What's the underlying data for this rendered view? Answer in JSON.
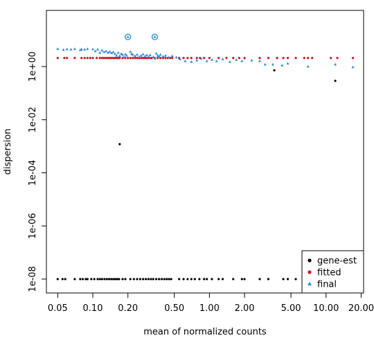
{
  "chart_data": {
    "type": "scatter",
    "title": "",
    "xlabel": "mean of normalized counts",
    "ylabel": "dispersion",
    "x_scale": "log",
    "y_scale": "log",
    "xlim": [
      0.04,
      21
    ],
    "ylim": [
      3e-09,
      130
    ],
    "x_ticks": [
      {
        "value": 0.05,
        "label": "0.05"
      },
      {
        "value": 0.1,
        "label": "0.10"
      },
      {
        "value": 0.2,
        "label": "0.20"
      },
      {
        "value": 0.5,
        "label": "0.50"
      },
      {
        "value": 1.0,
        "label": "1.00"
      },
      {
        "value": 2.0,
        "label": "2.00"
      },
      {
        "value": 5.0,
        "label": "5.00"
      },
      {
        "value": 10.0,
        "label": "10.00"
      },
      {
        "value": 20.0,
        "label": "20.00"
      }
    ],
    "y_ticks": [
      {
        "value": 1e-08,
        "label": "1e-08"
      },
      {
        "value": 1e-06,
        "label": "1e-06"
      },
      {
        "value": 0.0001,
        "label": "1e-04"
      },
      {
        "value": 0.01,
        "label": "1e-02"
      },
      {
        "value": 1,
        "label": "1e+00"
      }
    ],
    "legend_position": "bottom-right",
    "grid": false,
    "series": [
      {
        "name": "gene-est",
        "color": "#000000",
        "marker": "dot",
        "points": [
          [
            0.05,
            1e-08
          ],
          [
            0.055,
            1e-08
          ],
          [
            0.058,
            1e-08
          ],
          [
            0.07,
            1e-08
          ],
          [
            0.078,
            1e-08
          ],
          [
            0.082,
            1e-08
          ],
          [
            0.087,
            1e-08
          ],
          [
            0.09,
            1e-08
          ],
          [
            0.097,
            1e-08
          ],
          [
            0.103,
            1e-08
          ],
          [
            0.11,
            1e-08
          ],
          [
            0.115,
            1e-08
          ],
          [
            0.12,
            1e-08
          ],
          [
            0.126,
            1e-08
          ],
          [
            0.132,
            1e-08
          ],
          [
            0.138,
            1e-08
          ],
          [
            0.144,
            1e-08
          ],
          [
            0.15,
            1e-08
          ],
          [
            0.156,
            1e-08
          ],
          [
            0.162,
            1e-08
          ],
          [
            0.168,
            1e-08
          ],
          [
            0.18,
            1e-08
          ],
          [
            0.19,
            1e-08
          ],
          [
            0.21,
            1e-08
          ],
          [
            0.225,
            1e-08
          ],
          [
            0.24,
            1e-08
          ],
          [
            0.255,
            1e-08
          ],
          [
            0.27,
            1e-08
          ],
          [
            0.285,
            1e-08
          ],
          [
            0.3,
            1e-08
          ],
          [
            0.315,
            1e-08
          ],
          [
            0.33,
            1e-08
          ],
          [
            0.35,
            1e-08
          ],
          [
            0.37,
            1e-08
          ],
          [
            0.39,
            1e-08
          ],
          [
            0.41,
            1e-08
          ],
          [
            0.43,
            1e-08
          ],
          [
            0.45,
            1e-08
          ],
          [
            0.47,
            1e-08
          ],
          [
            0.55,
            1e-08
          ],
          [
            0.6,
            1e-08
          ],
          [
            0.65,
            1e-08
          ],
          [
            0.7,
            1e-08
          ],
          [
            0.75,
            1e-08
          ],
          [
            0.82,
            1e-08
          ],
          [
            0.9,
            1e-08
          ],
          [
            0.95,
            1e-08
          ],
          [
            1.05,
            1e-08
          ],
          [
            1.2,
            1e-08
          ],
          [
            1.3,
            1e-08
          ],
          [
            1.6,
            1e-08
          ],
          [
            1.9,
            1e-08
          ],
          [
            2.0,
            1e-08
          ],
          [
            2.7,
            1e-08
          ],
          [
            3.2,
            1e-08
          ],
          [
            4.3,
            1e-08
          ],
          [
            4.7,
            1e-08
          ],
          [
            5.5,
            1e-08
          ],
          [
            7.5,
            1e-08
          ],
          [
            0.17,
            0.0012
          ],
          [
            3.6,
            0.72
          ],
          [
            12.0,
            0.29
          ]
        ]
      },
      {
        "name": "fitted",
        "color": "#d0101f",
        "marker": "dot",
        "points": [
          [
            0.05,
            2.1
          ],
          [
            0.057,
            2.1
          ],
          [
            0.06,
            2.1
          ],
          [
            0.07,
            2.1
          ],
          [
            0.08,
            2.1
          ],
          [
            0.085,
            2.1
          ],
          [
            0.09,
            2.1
          ],
          [
            0.095,
            2.1
          ],
          [
            0.1,
            2.1
          ],
          [
            0.108,
            2.1
          ],
          [
            0.115,
            2.1
          ],
          [
            0.12,
            2.1
          ],
          [
            0.125,
            2.1
          ],
          [
            0.13,
            2.1
          ],
          [
            0.135,
            2.1
          ],
          [
            0.14,
            2.1
          ],
          [
            0.145,
            2.1
          ],
          [
            0.15,
            2.1
          ],
          [
            0.155,
            2.1
          ],
          [
            0.16,
            2.1
          ],
          [
            0.165,
            2.1
          ],
          [
            0.17,
            2.1
          ],
          [
            0.18,
            2.1
          ],
          [
            0.19,
            2.1
          ],
          [
            0.2,
            2.1
          ],
          [
            0.21,
            2.1
          ],
          [
            0.22,
            2.1
          ],
          [
            0.23,
            2.1
          ],
          [
            0.24,
            2.1
          ],
          [
            0.25,
            2.1
          ],
          [
            0.26,
            2.1
          ],
          [
            0.27,
            2.1
          ],
          [
            0.28,
            2.1
          ],
          [
            0.29,
            2.1
          ],
          [
            0.3,
            2.1
          ],
          [
            0.31,
            2.1
          ],
          [
            0.32,
            2.1
          ],
          [
            0.34,
            2.1
          ],
          [
            0.36,
            2.1
          ],
          [
            0.38,
            2.1
          ],
          [
            0.4,
            2.1
          ],
          [
            0.42,
            2.1
          ],
          [
            0.44,
            2.1
          ],
          [
            0.46,
            2.1
          ],
          [
            0.48,
            2.1
          ],
          [
            0.55,
            2.1
          ],
          [
            0.6,
            2.1
          ],
          [
            0.65,
            2.1
          ],
          [
            0.7,
            2.1
          ],
          [
            0.78,
            2.1
          ],
          [
            0.83,
            2.1
          ],
          [
            0.9,
            2.1
          ],
          [
            1.0,
            2.1
          ],
          [
            1.2,
            2.1
          ],
          [
            1.4,
            2.1
          ],
          [
            1.6,
            2.1
          ],
          [
            1.8,
            2.1
          ],
          [
            2.0,
            2.1
          ],
          [
            2.7,
            2.1
          ],
          [
            3.2,
            2.1
          ],
          [
            3.8,
            2.1
          ],
          [
            4.3,
            2.1
          ],
          [
            4.7,
            2.1
          ],
          [
            5.5,
            2.1
          ],
          [
            6.5,
            2.1
          ],
          [
            7.0,
            2.1
          ],
          [
            7.6,
            2.1
          ],
          [
            11.0,
            2.1
          ],
          [
            12.5,
            2.1
          ],
          [
            17.0,
            2.1
          ]
        ]
      },
      {
        "name": "final",
        "color": "#2e8ed6",
        "marker": "triangle",
        "points": [
          [
            0.05,
            4.6
          ],
          [
            0.056,
            4.3
          ],
          [
            0.06,
            4.5
          ],
          [
            0.065,
            4.4
          ],
          [
            0.07,
            4.6
          ],
          [
            0.078,
            4.2
          ],
          [
            0.08,
            4.5
          ],
          [
            0.085,
            4.4
          ],
          [
            0.09,
            4.6
          ],
          [
            0.1,
            4.5
          ],
          [
            0.105,
            3.8
          ],
          [
            0.11,
            4.4
          ],
          [
            0.115,
            3.3
          ],
          [
            0.12,
            4.0
          ],
          [
            0.125,
            3.5
          ],
          [
            0.13,
            3.8
          ],
          [
            0.135,
            3.3
          ],
          [
            0.14,
            3.6
          ],
          [
            0.145,
            3.2
          ],
          [
            0.15,
            3.5
          ],
          [
            0.155,
            3.0
          ],
          [
            0.16,
            2.6
          ],
          [
            0.165,
            3.3
          ],
          [
            0.17,
            2.5
          ],
          [
            0.175,
            3.0
          ],
          [
            0.18,
            2.8
          ],
          [
            0.185,
            2.3
          ],
          [
            0.19,
            2.9
          ],
          [
            0.195,
            2.6
          ],
          [
            0.21,
            3.6
          ],
          [
            0.215,
            3.0
          ],
          [
            0.22,
            2.8
          ],
          [
            0.23,
            2.5
          ],
          [
            0.24,
            2.8
          ],
          [
            0.25,
            2.3
          ],
          [
            0.26,
            2.6
          ],
          [
            0.27,
            2.9
          ],
          [
            0.28,
            2.4
          ],
          [
            0.29,
            2.7
          ],
          [
            0.3,
            2.3
          ],
          [
            0.31,
            2.7
          ],
          [
            0.33,
            2.3
          ],
          [
            0.34,
            2.0
          ],
          [
            0.35,
            3.1
          ],
          [
            0.36,
            2.6
          ],
          [
            0.37,
            2.4
          ],
          [
            0.38,
            2.8
          ],
          [
            0.4,
            2.4
          ],
          [
            0.42,
            2.6
          ],
          [
            0.45,
            2.2
          ],
          [
            0.48,
            2.5
          ],
          [
            0.52,
            2.2
          ],
          [
            0.56,
            1.9
          ],
          [
            0.62,
            1.6
          ],
          [
            0.7,
            1.5
          ],
          [
            0.78,
            1.7
          ],
          [
            0.85,
            2.0
          ],
          [
            0.95,
            1.6
          ],
          [
            1.05,
            1.8
          ],
          [
            1.15,
            1.6
          ],
          [
            1.3,
            1.9
          ],
          [
            1.5,
            1.5
          ],
          [
            1.7,
            1.8
          ],
          [
            1.9,
            1.6
          ],
          [
            2.3,
            1.7
          ],
          [
            2.7,
            1.6
          ],
          [
            3.0,
            1.2
          ],
          [
            3.5,
            1.2
          ],
          [
            4.2,
            1.1
          ],
          [
            4.7,
            1.3
          ],
          [
            7.0,
            1.0
          ],
          [
            12.0,
            1.2
          ],
          [
            17.0,
            0.95
          ],
          [
            0.2,
            13.0
          ],
          [
            0.34,
            13.0
          ]
        ]
      }
    ],
    "highlighted_outliers": [
      [
        0.2,
        13.0
      ],
      [
        0.34,
        13.0
      ]
    ]
  }
}
